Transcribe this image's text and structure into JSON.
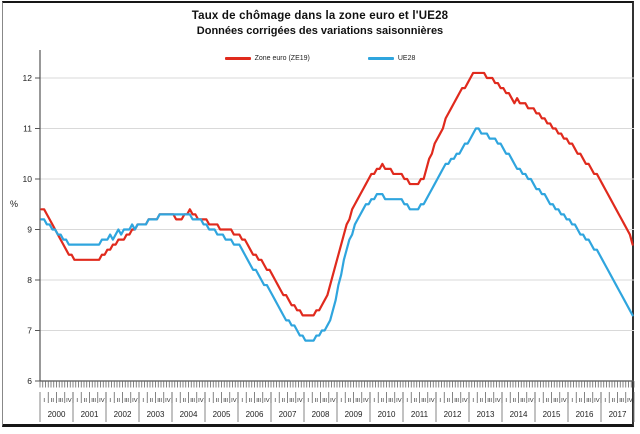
{
  "header": {
    "title": "Taux de chômage dans la zone euro et l'UE28",
    "subtitle": "Données corrigées des variations saisonnières"
  },
  "chart_data": {
    "type": "line",
    "title": "Taux de chômage dans la zone euro et l'UE28",
    "subtitle": "Données corrigées des variations saisonnières",
    "ylabel": "%",
    "ylim": [
      6,
      12
    ],
    "yticks": [
      6,
      7,
      8,
      9,
      10,
      11,
      12
    ],
    "grid": true,
    "legend_position": "top-center",
    "x_unit": "monthly, 2000-2017, quarter labels I II III IV per year",
    "years": [
      2000,
      2001,
      2002,
      2003,
      2004,
      2005,
      2006,
      2007,
      2008,
      2009,
      2010,
      2011,
      2012,
      2013,
      2014,
      2015,
      2016,
      2017
    ],
    "quarter_labels": [
      "I",
      "II",
      "III",
      "IV"
    ],
    "series": [
      {
        "name": "Zone euro (ZE19)",
        "color": "#e02a1d",
        "values_by_year": [
          [
            9.4,
            9.4,
            9.3,
            9.2,
            9.1,
            9.0,
            8.9,
            8.8,
            8.7,
            8.6,
            8.5,
            8.5
          ],
          [
            8.4,
            8.4,
            8.4,
            8.4,
            8.4,
            8.4,
            8.4,
            8.4,
            8.4,
            8.4,
            8.5,
            8.5
          ],
          [
            8.6,
            8.6,
            8.7,
            8.7,
            8.8,
            8.8,
            8.8,
            8.9,
            8.9,
            9.0,
            9.0,
            9.1
          ],
          [
            9.1,
            9.1,
            9.1,
            9.2,
            9.2,
            9.2,
            9.2,
            9.3,
            9.3,
            9.3,
            9.3,
            9.3
          ],
          [
            9.3,
            9.2,
            9.2,
            9.2,
            9.3,
            9.3,
            9.4,
            9.3,
            9.3,
            9.2,
            9.2,
            9.2
          ],
          [
            9.2,
            9.1,
            9.1,
            9.1,
            9.1,
            9.0,
            9.0,
            9.0,
            9.0,
            9.0,
            8.9,
            8.9
          ],
          [
            8.9,
            8.8,
            8.8,
            8.7,
            8.6,
            8.5,
            8.5,
            8.4,
            8.4,
            8.3,
            8.2,
            8.2
          ],
          [
            8.1,
            8.0,
            7.9,
            7.8,
            7.7,
            7.7,
            7.6,
            7.5,
            7.5,
            7.4,
            7.4,
            7.3
          ],
          [
            7.3,
            7.3,
            7.3,
            7.3,
            7.4,
            7.4,
            7.5,
            7.6,
            7.7,
            7.9,
            8.1,
            8.3
          ],
          [
            8.5,
            8.7,
            8.9,
            9.1,
            9.2,
            9.4,
            9.5,
            9.6,
            9.7,
            9.8,
            9.9,
            10.0
          ],
          [
            10.1,
            10.1,
            10.2,
            10.2,
            10.3,
            10.2,
            10.2,
            10.2,
            10.1,
            10.1,
            10.1,
            10.1
          ],
          [
            10.0,
            10.0,
            9.9,
            9.9,
            9.9,
            9.9,
            10.0,
            10.0,
            10.2,
            10.4,
            10.5,
            10.7
          ],
          [
            10.8,
            10.9,
            11.0,
            11.2,
            11.3,
            11.4,
            11.5,
            11.6,
            11.7,
            11.8,
            11.8,
            11.9
          ],
          [
            12.0,
            12.1,
            12.1,
            12.1,
            12.1,
            12.1,
            12.0,
            12.0,
            12.0,
            11.9,
            11.9,
            11.8
          ],
          [
            11.8,
            11.7,
            11.7,
            11.6,
            11.5,
            11.6,
            11.5,
            11.5,
            11.5,
            11.4,
            11.4,
            11.4
          ],
          [
            11.3,
            11.3,
            11.2,
            11.2,
            11.1,
            11.1,
            11.0,
            11.0,
            10.9,
            10.9,
            10.8,
            10.8
          ],
          [
            10.7,
            10.7,
            10.6,
            10.5,
            10.5,
            10.4,
            10.3,
            10.3,
            10.2,
            10.1,
            10.1,
            10.0
          ],
          [
            9.9,
            9.8,
            9.7,
            9.6,
            9.5,
            9.4,
            9.3,
            9.2,
            9.1,
            9.0,
            8.9,
            8.7
          ]
        ]
      },
      {
        "name": "UE28",
        "color": "#2fa5de",
        "values_by_year": [
          [
            9.2,
            9.2,
            9.1,
            9.1,
            9.0,
            9.0,
            8.9,
            8.9,
            8.8,
            8.8,
            8.7,
            8.7
          ],
          [
            8.7,
            8.7,
            8.7,
            8.7,
            8.7,
            8.7,
            8.7,
            8.7,
            8.7,
            8.7,
            8.8,
            8.8
          ],
          [
            8.8,
            8.9,
            8.8,
            8.9,
            9.0,
            8.9,
            9.0,
            9.0,
            9.0,
            9.1,
            9.0,
            9.1
          ],
          [
            9.1,
            9.1,
            9.1,
            9.2,
            9.2,
            9.2,
            9.2,
            9.3,
            9.3,
            9.3,
            9.3,
            9.3
          ],
          [
            9.3,
            9.3,
            9.3,
            9.3,
            9.3,
            9.3,
            9.3,
            9.2,
            9.2,
            9.2,
            9.2,
            9.1
          ],
          [
            9.1,
            9.0,
            9.0,
            9.0,
            8.9,
            8.9,
            8.9,
            8.8,
            8.8,
            8.8,
            8.7,
            8.7
          ],
          [
            8.7,
            8.6,
            8.5,
            8.4,
            8.3,
            8.2,
            8.2,
            8.1,
            8.0,
            7.9,
            7.9,
            7.8
          ],
          [
            7.7,
            7.6,
            7.5,
            7.4,
            7.3,
            7.2,
            7.2,
            7.1,
            7.1,
            7.0,
            6.9,
            6.9
          ],
          [
            6.8,
            6.8,
            6.8,
            6.8,
            6.9,
            6.9,
            7.0,
            7.0,
            7.1,
            7.2,
            7.4,
            7.6
          ],
          [
            7.9,
            8.1,
            8.4,
            8.6,
            8.8,
            8.9,
            9.1,
            9.2,
            9.3,
            9.4,
            9.5,
            9.5
          ],
          [
            9.6,
            9.6,
            9.7,
            9.7,
            9.7,
            9.6,
            9.6,
            9.6,
            9.6,
            9.6,
            9.6,
            9.6
          ],
          [
            9.5,
            9.5,
            9.4,
            9.4,
            9.4,
            9.4,
            9.5,
            9.5,
            9.6,
            9.7,
            9.8,
            9.9
          ],
          [
            10.0,
            10.1,
            10.2,
            10.3,
            10.3,
            10.4,
            10.4,
            10.5,
            10.5,
            10.6,
            10.7,
            10.7
          ],
          [
            10.8,
            10.9,
            11.0,
            11.0,
            10.9,
            10.9,
            10.9,
            10.8,
            10.8,
            10.8,
            10.7,
            10.7
          ],
          [
            10.6,
            10.5,
            10.5,
            10.4,
            10.3,
            10.2,
            10.2,
            10.1,
            10.1,
            10.0,
            10.0,
            9.9
          ],
          [
            9.8,
            9.8,
            9.7,
            9.7,
            9.6,
            9.5,
            9.5,
            9.4,
            9.4,
            9.3,
            9.3,
            9.2
          ],
          [
            9.2,
            9.1,
            9.1,
            9.0,
            8.9,
            8.9,
            8.8,
            8.8,
            8.7,
            8.6,
            8.6,
            8.5
          ],
          [
            8.4,
            8.3,
            8.2,
            8.1,
            8.0,
            7.9,
            7.8,
            7.7,
            7.6,
            7.5,
            7.4,
            7.3
          ]
        ]
      }
    ]
  },
  "colors": {
    "zone_euro": "#e02a1d",
    "ue28": "#2fa5de",
    "gridline": "#d9d9d9",
    "axis": "#555555",
    "text": "#222222",
    "frame": "#161616"
  }
}
